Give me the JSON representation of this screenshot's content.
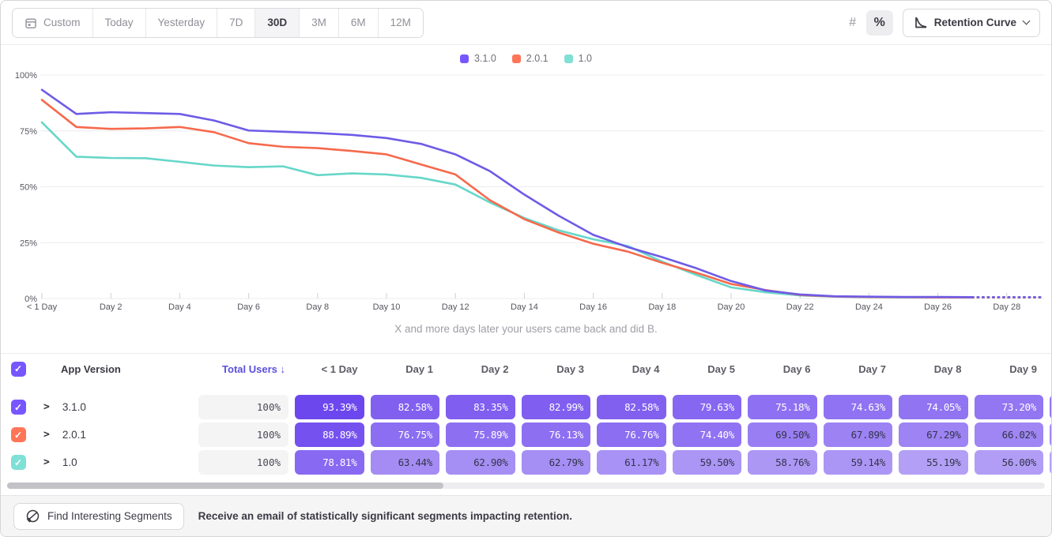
{
  "toolbar": {
    "date_ranges": [
      {
        "label": "Custom",
        "icon": "calendar",
        "selected": false
      },
      {
        "label": "Today",
        "selected": false
      },
      {
        "label": "Yesterday",
        "selected": false
      },
      {
        "label": "7D",
        "selected": false
      },
      {
        "label": "30D",
        "selected": true
      },
      {
        "label": "3M",
        "selected": false
      },
      {
        "label": "6M",
        "selected": false
      },
      {
        "label": "12M",
        "selected": false
      }
    ],
    "mode_toggle": [
      {
        "label": "#",
        "name": "number-mode",
        "selected": false
      },
      {
        "label": "%",
        "name": "percent-mode",
        "selected": true
      }
    ],
    "chart_type_button": {
      "label": "Retention Curve"
    }
  },
  "legend": [
    {
      "label": "3.1.0",
      "color": "#7856ff"
    },
    {
      "label": "2.0.1",
      "color": "#ff7557"
    },
    {
      "label": "1.0",
      "color": "#7fe0d6"
    }
  ],
  "chart_data": {
    "type": "line",
    "caption": "X and more days later your users came back and did B.",
    "ylabel": "",
    "xlabel": "",
    "ylim": [
      0,
      100
    ],
    "grid": true,
    "legend_position": "top-center",
    "y_ticks": [
      {
        "value": 100,
        "label": "100%"
      },
      {
        "value": 75,
        "label": "75%"
      },
      {
        "value": 50,
        "label": "50%"
      },
      {
        "value": 25,
        "label": "25%"
      },
      {
        "value": 0,
        "label": "0%"
      }
    ],
    "x_ticks": [
      {
        "day": 0,
        "label": "< 1 Day"
      },
      {
        "day": 2,
        "label": "Day 2"
      },
      {
        "day": 4,
        "label": "Day 4"
      },
      {
        "day": 6,
        "label": "Day 6"
      },
      {
        "day": 8,
        "label": "Day 8"
      },
      {
        "day": 10,
        "label": "Day 10"
      },
      {
        "day": 12,
        "label": "Day 12"
      },
      {
        "day": 14,
        "label": "Day 14"
      },
      {
        "day": 16,
        "label": "Day 16"
      },
      {
        "day": 18,
        "label": "Day 18"
      },
      {
        "day": 20,
        "label": "Day 20"
      },
      {
        "day": 22,
        "label": "Day 22"
      },
      {
        "day": 24,
        "label": "Day 24"
      },
      {
        "day": 26,
        "label": "Day 26"
      },
      {
        "day": 28,
        "label": "Day 28"
      }
    ],
    "dashed_from_day": 27,
    "series": [
      {
        "name": "3.1.0",
        "color": "#6e5be6",
        "values": [
          93.39,
          82.58,
          83.35,
          82.99,
          82.58,
          79.63,
          75.18,
          74.63,
          74.05,
          73.2,
          71.8,
          69.2,
          64.5,
          57.0,
          46.5,
          37.0,
          28.5,
          23.0,
          18.5,
          13.5,
          7.8,
          3.6,
          1.8,
          1.0,
          0.8,
          0.7,
          0.7,
          0.6,
          0.6,
          0.6
        ]
      },
      {
        "name": "2.0.1",
        "color": "#f6694c",
        "values": [
          88.89,
          76.75,
          75.89,
          76.13,
          76.76,
          74.4,
          69.5,
          67.89,
          67.29,
          66.02,
          64.5,
          60.0,
          55.5,
          44.0,
          35.5,
          29.5,
          24.5,
          21.0,
          16.0,
          11.5,
          6.5,
          3.8,
          1.6,
          0.9,
          0.7,
          0.6,
          0.5,
          0.5,
          0.5,
          0.5
        ]
      },
      {
        "name": "1.0",
        "color": "#66d7c9",
        "values": [
          78.81,
          63.44,
          62.9,
          62.79,
          61.17,
          59.5,
          58.76,
          59.14,
          55.19,
          56.0,
          55.5,
          54.0,
          51.0,
          43.0,
          36.0,
          30.5,
          26.5,
          23.5,
          16.5,
          10.5,
          5.0,
          2.8,
          1.4,
          0.8,
          0.6,
          0.5,
          0.5,
          0.5,
          0.5,
          0.5
        ]
      }
    ]
  },
  "table": {
    "app_version_header": "App Version",
    "total_users_header": "Total Users",
    "sort_arrow": "↓",
    "day_headers": [
      "< 1 Day",
      "Day 1",
      "Day 2",
      "Day 3",
      "Day 4",
      "Day 5",
      "Day 6",
      "Day 7",
      "Day 8",
      "Day 9"
    ],
    "check_glyph": "✓",
    "expand_glyph": ">",
    "rows": [
      {
        "version": "3.1.0",
        "color": "#7856ff",
        "checked": true,
        "total": "100%",
        "values": [
          93.39,
          82.58,
          83.35,
          82.99,
          82.58,
          79.63,
          75.18,
          74.63,
          74.05,
          73.2
        ]
      },
      {
        "version": "2.0.1",
        "color": "#ff7557",
        "checked": true,
        "total": "100%",
        "values": [
          88.89,
          76.75,
          75.89,
          76.13,
          76.76,
          74.4,
          69.5,
          67.89,
          67.29,
          66.02
        ]
      },
      {
        "version": "1.0",
        "color": "#7fe0d6",
        "checked": true,
        "total": "100%",
        "values": [
          78.81,
          63.44,
          62.9,
          62.79,
          61.17,
          59.5,
          58.76,
          59.14,
          55.19,
          56.0
        ]
      }
    ],
    "header_checkbox_color": "#7856ff"
  },
  "footer": {
    "button_label": "Find Interesting Segments",
    "message": "Receive an email of statistically significant segments impacting retention."
  },
  "colors": {
    "cell_scale_light": "#b5a2f6",
    "cell_scale_dark": "#6c46ee",
    "gridline": "#ececee",
    "axis_label": "#55555e",
    "tick": "#cfcfd4"
  }
}
